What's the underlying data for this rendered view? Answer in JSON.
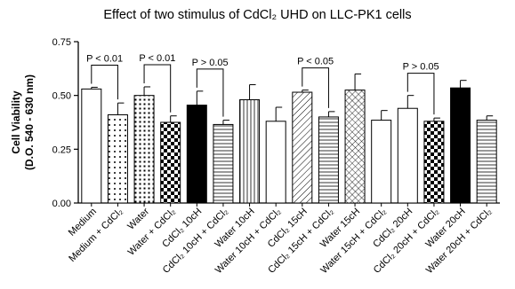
{
  "chart_data": {
    "type": "bar",
    "title": "Effect of two stimulus of CdCl₂ UHD on LLC-PK1 cells",
    "ylabel_lines": [
      "Cell Viability",
      "(D.O. 540 - 630 nm)"
    ],
    "ylim": [
      0,
      0.75
    ],
    "yticks": [
      "0.00",
      "0.25",
      "0.50",
      "0.75"
    ],
    "categories": [
      "Medium",
      "Medium + CdCl₂",
      "Water",
      "Water + CdCl₂",
      "CdCl₂ 10cH",
      "CdCl₂ 10cH + CdCl₂",
      "Water 10cH",
      "Water 10cH + CdCl₂",
      "CdCl₂ 15cH",
      "CdCl₂ 15cH + CdCl₂",
      "Water 15cH",
      "Water 15cH + CdCl₂",
      "CdCl₂ 20cH",
      "CdCl₂ 20cH + CdCl₂",
      "Water 20cH",
      "Water 20cH + CdCl₂"
    ],
    "values": [
      0.53,
      0.41,
      0.5,
      0.375,
      0.455,
      0.365,
      0.48,
      0.38,
      0.515,
      0.4,
      0.525,
      0.385,
      0.44,
      0.38,
      0.535,
      0.385
    ],
    "errors": [
      0.008,
      0.055,
      0.04,
      0.03,
      0.065,
      0.02,
      0.07,
      0.065,
      0.01,
      0.025,
      0.075,
      0.045,
      0.06,
      0.015,
      0.035,
      0.02
    ],
    "patterns": [
      "white",
      "dots",
      "grid-dots",
      "checker",
      "black",
      "hlines",
      "vlines",
      "white",
      "diag",
      "hlines",
      "crosshatch",
      "white",
      "white",
      "checker",
      "black",
      "hlines"
    ],
    "comparisons": [
      {
        "from": 0,
        "to": 1,
        "label": "P < 0.01"
      },
      {
        "from": 2,
        "to": 3,
        "label": "P < 0.01"
      },
      {
        "from": 4,
        "to": 5,
        "label": "P > 0.05"
      },
      {
        "from": 8,
        "to": 9,
        "label": "P < 0.05"
      },
      {
        "from": 12,
        "to": 13,
        "label": "P > 0.05"
      }
    ],
    "grid": false
  }
}
